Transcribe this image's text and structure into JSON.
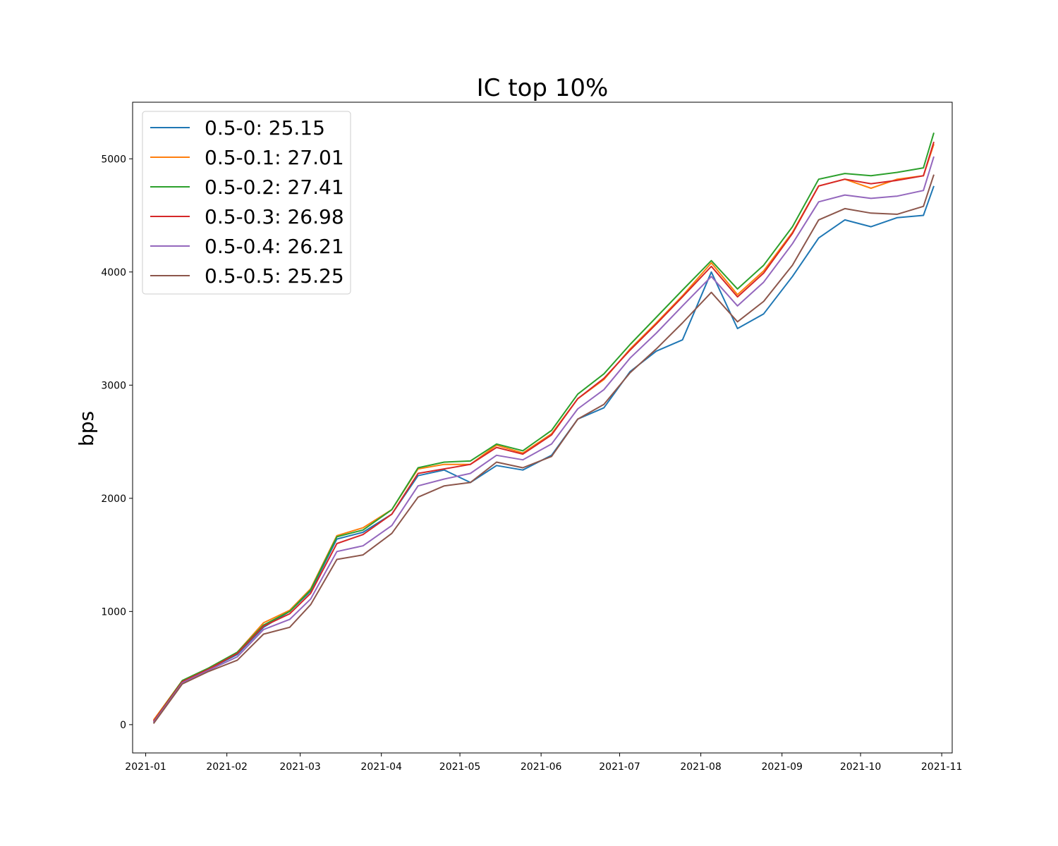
{
  "chart_data": {
    "type": "line",
    "title": "IC top 10%",
    "xlabel": "",
    "ylabel": "bps",
    "xlim": [
      "2020-12-27",
      "2021-11-05"
    ],
    "ylim": [
      -250,
      5500
    ],
    "x_ticks": [
      "2021-01",
      "2021-02",
      "2021-03",
      "2021-04",
      "2021-05",
      "2021-06",
      "2021-07",
      "2021-08",
      "2021-09",
      "2021-10",
      "2021-11"
    ],
    "y_ticks": [
      0,
      1000,
      2000,
      3000,
      4000,
      5000
    ],
    "grid": false,
    "legend_location": "upper left",
    "x": [
      "2021-01-04",
      "2021-01-15",
      "2021-01-25",
      "2021-02-05",
      "2021-02-15",
      "2021-02-25",
      "2021-03-05",
      "2021-03-15",
      "2021-03-25",
      "2021-04-05",
      "2021-04-15",
      "2021-04-25",
      "2021-05-05",
      "2021-05-15",
      "2021-05-25",
      "2021-06-05",
      "2021-06-15",
      "2021-06-25",
      "2021-07-05",
      "2021-07-15",
      "2021-07-25",
      "2021-08-05",
      "2021-08-15",
      "2021-08-25",
      "2021-09-05",
      "2021-09-15",
      "2021-09-25",
      "2021-10-05",
      "2021-10-15",
      "2021-10-25",
      "2021-10-29"
    ],
    "series": [
      {
        "name": "0.5-0: 25.15",
        "color": "#1f77b4",
        "values": [
          20,
          380,
          490,
          620,
          860,
          1000,
          1180,
          1640,
          1700,
          1860,
          2200,
          2250,
          2140,
          2290,
          2250,
          2380,
          2700,
          2800,
          3120,
          3300,
          3400,
          4000,
          3500,
          3630,
          3960,
          4300,
          4460,
          4400,
          4480,
          4500,
          4760
        ]
      },
      {
        "name": "0.5-0.1: 27.01",
        "color": "#ff7f0e",
        "values": [
          40,
          390,
          500,
          640,
          900,
          1010,
          1200,
          1670,
          1740,
          1900,
          2260,
          2300,
          2300,
          2470,
          2400,
          2570,
          2880,
          3050,
          3320,
          3550,
          3790,
          4080,
          3800,
          4010,
          4350,
          4760,
          4820,
          4740,
          4820,
          4850,
          5130
        ]
      },
      {
        "name": "0.5-0.2: 27.41",
        "color": "#2ca02c",
        "values": [
          30,
          390,
          500,
          640,
          880,
          1000,
          1190,
          1660,
          1720,
          1900,
          2270,
          2320,
          2330,
          2480,
          2420,
          2600,
          2920,
          3100,
          3360,
          3600,
          3840,
          4100,
          3850,
          4060,
          4400,
          4820,
          4870,
          4850,
          4880,
          4920,
          5230
        ]
      },
      {
        "name": "0.5-0.3: 26.98",
        "color": "#d62728",
        "values": [
          30,
          380,
          490,
          630,
          870,
          980,
          1160,
          1600,
          1680,
          1860,
          2220,
          2260,
          2300,
          2450,
          2390,
          2560,
          2880,
          3060,
          3310,
          3540,
          3780,
          4050,
          3780,
          3990,
          4340,
          4760,
          4820,
          4780,
          4810,
          4850,
          5150
        ]
      },
      {
        "name": "0.5-0.4: 26.21",
        "color": "#9467bd",
        "values": [
          20,
          370,
          480,
          600,
          840,
          930,
          1110,
          1530,
          1580,
          1760,
          2110,
          2170,
          2220,
          2380,
          2340,
          2480,
          2790,
          2960,
          3240,
          3460,
          3700,
          3960,
          3700,
          3910,
          4250,
          4620,
          4680,
          4650,
          4670,
          4720,
          5020
        ]
      },
      {
        "name": "0.5-0.5: 25.25",
        "color": "#8c564b",
        "values": [
          10,
          360,
          470,
          570,
          800,
          860,
          1060,
          1460,
          1500,
          1690,
          2010,
          2110,
          2140,
          2320,
          2270,
          2370,
          2700,
          2830,
          3110,
          3320,
          3550,
          3820,
          3560,
          3740,
          4060,
          4460,
          4560,
          4520,
          4510,
          4580,
          4860
        ]
      }
    ]
  }
}
